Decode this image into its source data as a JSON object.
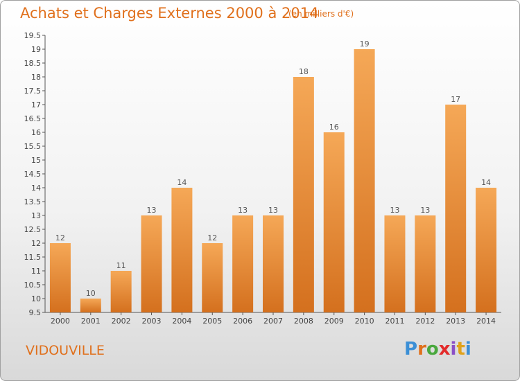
{
  "header": {
    "title": "Achats et Charges Externes 2000 à 2014",
    "unit": "(en milliers d'€)"
  },
  "footer": {
    "commune": "VIDOUVILLE",
    "logo_text": "Proxiti"
  },
  "colors": {
    "accent": "#e0701c",
    "bar_light": "#f5a857",
    "bar_dark": "#d4701e",
    "logo_letters": [
      "#3b8fd6",
      "#e0701c",
      "#4aa83e",
      "#e32b2b",
      "#8b4fc7",
      "#e0a21c",
      "#3b8fd6"
    ]
  },
  "chart_data": {
    "type": "bar",
    "title": "Achats et Charges Externes 2000 à 2014",
    "subtitle": "(en milliers d'€)",
    "xlabel": "",
    "ylabel": "",
    "categories": [
      "2000",
      "2001",
      "2002",
      "2003",
      "2004",
      "2005",
      "2006",
      "2007",
      "2008",
      "2009",
      "2010",
      "2011",
      "2012",
      "2013",
      "2014"
    ],
    "values": [
      12,
      10,
      11,
      13,
      14,
      12,
      13,
      13,
      18,
      16,
      19,
      13,
      13,
      17,
      14
    ],
    "data_labels": [
      "12",
      "10",
      "11",
      "13",
      "14",
      "12",
      "13",
      "13",
      "18",
      "16",
      "19",
      "13",
      "13",
      "17",
      "14"
    ],
    "ylim": [
      9.5,
      19.5
    ],
    "yticks": [
      9.5,
      10,
      10.5,
      11,
      11.5,
      12,
      12.5,
      13,
      13.5,
      14,
      14.5,
      15,
      15.5,
      16,
      16.5,
      17,
      17.5,
      18,
      18.5,
      19,
      19.5
    ],
    "ytick_labels": [
      "9.5",
      "10",
      "10.5",
      "11",
      "11.5",
      "12",
      "12.5",
      "13",
      "13.5",
      "14",
      "14.5",
      "15",
      "15.5",
      "16",
      "16.5",
      "17",
      "17.5",
      "18",
      "18.5",
      "19",
      "19.5"
    ],
    "grid": false,
    "legend": "none"
  }
}
